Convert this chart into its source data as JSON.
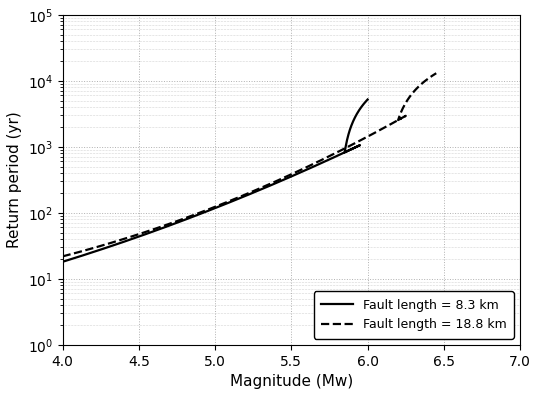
{
  "xlabel": "Magnitude (Mw)",
  "ylabel": "Return period (yr)",
  "xlim": [
    4.0,
    7.0
  ],
  "ylim": [
    1.0,
    100000.0
  ],
  "xticks": [
    4.0,
    4.5,
    5.0,
    5.5,
    6.0,
    6.5,
    7.0
  ],
  "legend": [
    {
      "label": "Fault length = 8.3 km",
      "linestyle": "solid"
    },
    {
      "label": "Fault length = 18.8 km",
      "linestyle": "dashed"
    }
  ],
  "line_color": "#000000",
  "line_width": 1.6,
  "grid_color": "#b0b0b0",
  "background_color": "#ffffff",
  "solid_x": [
    4.0,
    4.2,
    4.4,
    4.6,
    4.8,
    5.0,
    5.2,
    5.4,
    5.6,
    5.8,
    5.9,
    6.0
  ],
  "solid_y": [
    18.0,
    25.0,
    36.0,
    54.0,
    80.0,
    120.0,
    180.0,
    275.0,
    430.0,
    700.0,
    1000.0,
    5200.0
  ],
  "dashed_x": [
    4.0,
    4.2,
    4.4,
    4.6,
    4.8,
    5.0,
    5.2,
    5.4,
    5.6,
    5.8,
    6.0,
    6.1,
    6.2,
    6.3,
    6.4,
    6.45
  ],
  "dashed_y": [
    20.0,
    28.5,
    41.0,
    60.0,
    89.0,
    133.0,
    200.0,
    303.0,
    470.0,
    760.0,
    1100.0,
    1600.0,
    2600.0,
    4800.0,
    9000.0,
    13000.0
  ]
}
